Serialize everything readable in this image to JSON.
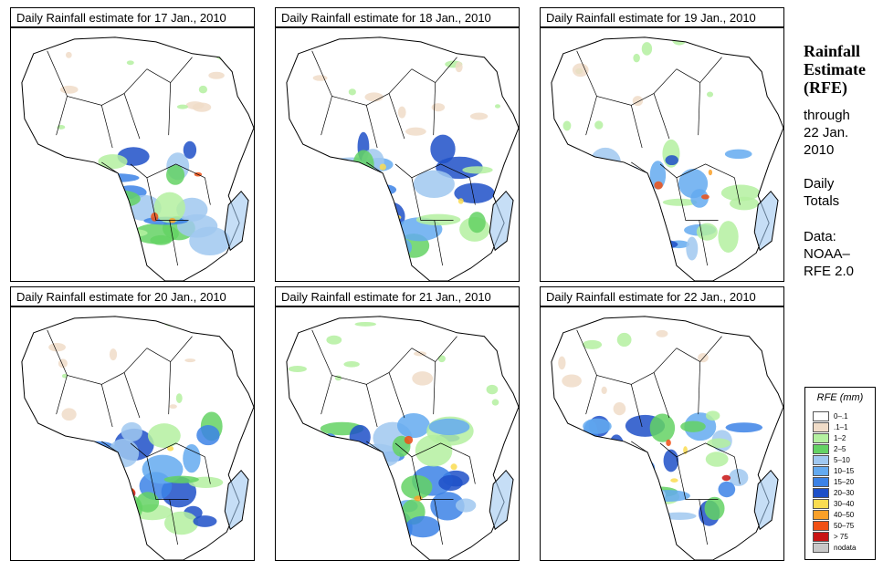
{
  "panels": [
    {
      "title": "Daily Rainfall estimate for  17 Jan., 2010"
    },
    {
      "title": "Daily Rainfall estimate for  18 Jan., 2010"
    },
    {
      "title": "Daily Rainfall estimate for  19 Jan., 2010"
    },
    {
      "title": "Daily Rainfall estimate for  20 Jan., 2010"
    },
    {
      "title": "Daily Rainfall estimate for  21 Jan., 2010"
    },
    {
      "title": "Daily Rainfall estimate for  22 Jan., 2010"
    }
  ],
  "side": {
    "title_line1": "Rainfall",
    "title_line2": "Estimate",
    "title_line3": "(RFE)",
    "through_line1": "through",
    "through_line2": "22 Jan.",
    "through_line3": "2010",
    "totals_line1": "Daily",
    "totals_line2": "Totals",
    "data_line1": "Data:",
    "data_line2": "NOAA–",
    "data_line3": "RFE 2.0"
  },
  "legend": {
    "title": "RFE (mm)",
    "items": [
      {
        "label": "0–.1",
        "color": "#ffffff"
      },
      {
        "label": ".1–1",
        "color": "#f0dcc8"
      },
      {
        "label": "1–2",
        "color": "#b4f0a0"
      },
      {
        "label": "2–5",
        "color": "#64d264"
      },
      {
        "label": "5–10",
        "color": "#a0c8f0"
      },
      {
        "label": "10–15",
        "color": "#64aaf0"
      },
      {
        "label": "15–20",
        "color": "#3c82e6"
      },
      {
        "label": "20–30",
        "color": "#1e50c8"
      },
      {
        "label": "30–40",
        "color": "#fadc50"
      },
      {
        "label": "40–50",
        "color": "#faa028"
      },
      {
        "label": "50–75",
        "color": "#f05014"
      },
      {
        "label": "> 75",
        "color": "#c81414"
      },
      {
        "label": "nodata",
        "color": "#c8c8c8"
      }
    ]
  }
}
